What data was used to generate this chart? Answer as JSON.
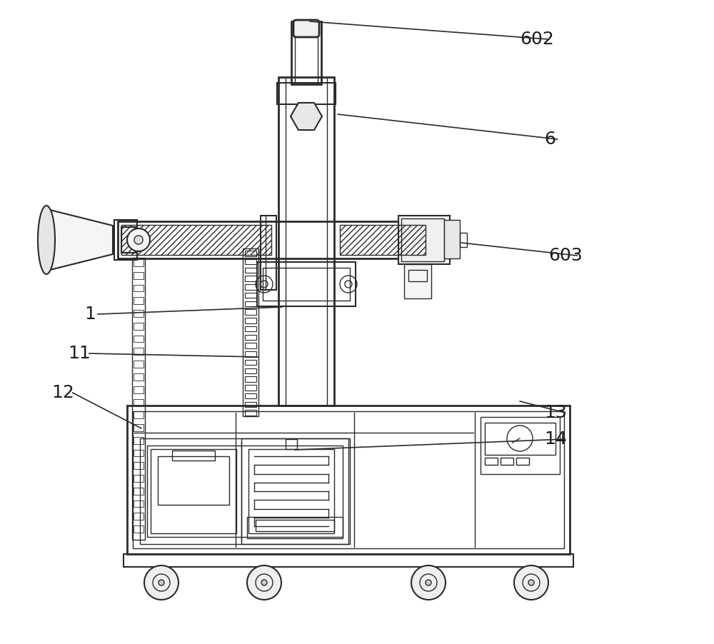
{
  "bg_color": "#ffffff",
  "line_color": "#2a2a2a",
  "label_color": "#1a1a1a",
  "label_fontsize": 18,
  "figsize": [
    10.0,
    9.02
  ],
  "dpi": 100
}
